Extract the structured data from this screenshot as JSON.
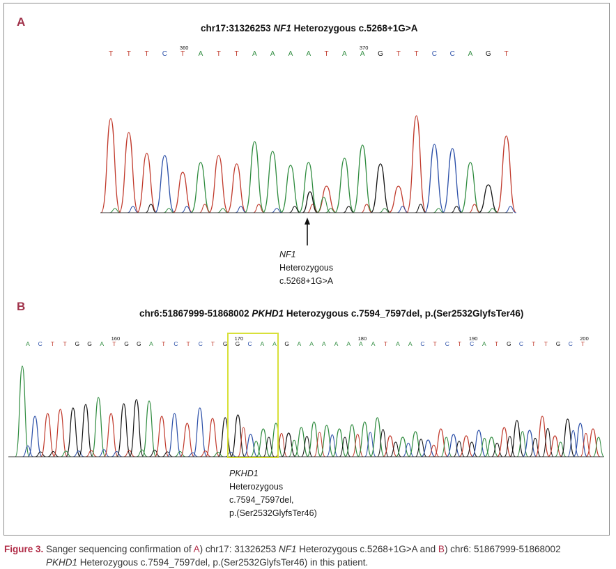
{
  "panel_a": {
    "label": "A",
    "title_prefix": "chr17:31326253 ",
    "title_gene": "NF1",
    "title_suffix": " Heterozygous c.5268+1G>A",
    "sequence": [
      "T",
      "T",
      "T",
      "C",
      "T",
      "A",
      "T",
      "T",
      "A",
      "A",
      "A",
      "A",
      "T",
      "A",
      "A",
      "G",
      "T",
      "T",
      "C",
      "C",
      "A",
      "G",
      "T"
    ],
    "position_labels": [
      {
        "text": "360",
        "index": 4
      },
      {
        "text": "370",
        "index": 14
      }
    ],
    "annotation": {
      "gene": "NF1",
      "line2": "Heterozygous",
      "line3": "c.5268+1G>A"
    }
  },
  "panel_b": {
    "label": "B",
    "title_prefix": "chr6:51867999-51868002 ",
    "title_gene": "PKHD1",
    "title_suffix": " Heterozygous c.7594_7597del, p.(Ser2532GlyfsTer46)",
    "sequence": [
      "A",
      "C",
      "T",
      "T",
      "G",
      "G",
      "A",
      "T",
      "G",
      "G",
      "A",
      "T",
      "C",
      "T",
      "C",
      "T",
      "G",
      "G",
      "C",
      "A",
      "A",
      "G",
      "A",
      "A",
      "A",
      "A",
      "A",
      "A",
      "A",
      "T",
      "A",
      "A",
      "C",
      "T",
      "C",
      "T",
      "C",
      "A",
      "T",
      "G",
      "C",
      "T",
      "T",
      "G",
      "C",
      "T"
    ],
    "position_labels": [
      {
        "text": "160",
        "index": 7
      },
      {
        "text": "170",
        "index": 17
      },
      {
        "text": "180",
        "index": 27
      },
      {
        "text": "190",
        "index": 36
      },
      {
        "text": "200",
        "index": 45
      }
    ],
    "annotation": {
      "gene": "PKHD1",
      "line2": "Heterozygous",
      "line3": "c.7594_7597del,",
      "line4": "p.(Ser2532GlyfsTer46)"
    }
  },
  "base_colors": {
    "A": "#2e8b3e",
    "C": "#2b4fa8",
    "G": "#111111",
    "T": "#c0392b"
  },
  "highlight_color": "#d8e03a",
  "caption": {
    "figure": "Figure 3.",
    "t1": " Sanger sequencing confirmation of ",
    "a": "A",
    "t2": ") chr17: 31326253 ",
    "g1": "NF1",
    "t3": " Heterozygous c.5268+1G>A and ",
    "b": "B",
    "t4": ") chr6: 51867999-51868002",
    "g2": "PKHD1",
    "t5": " Heterozygous c.7594_7597del, p.(Ser2532GlyfsTer46) in this patient."
  }
}
